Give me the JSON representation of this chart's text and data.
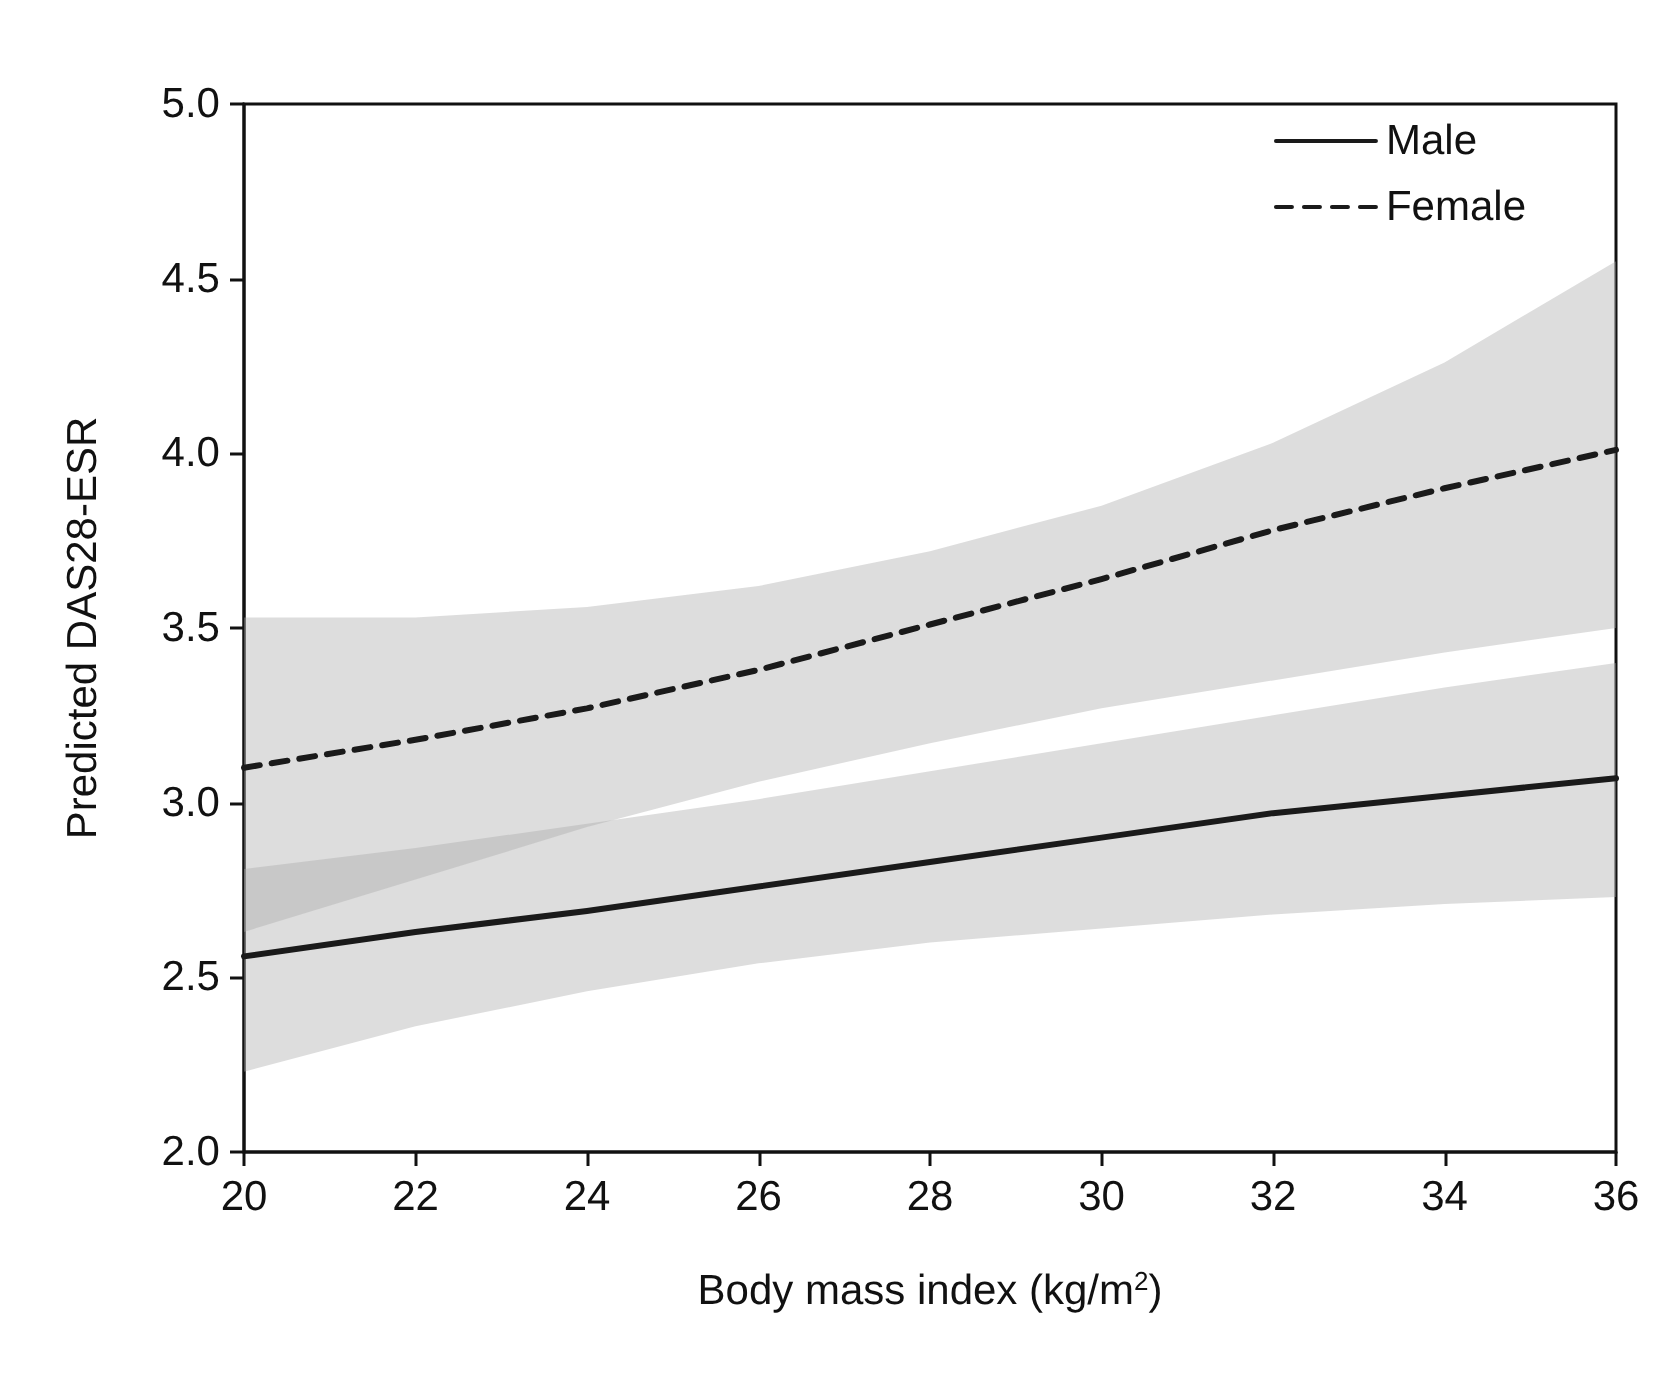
{
  "chart_data": {
    "type": "line",
    "xlabel": "Body mass index (kg/m$^{2}$)",
    "ylabel": "Predicted DAS28-ESR",
    "xlim": [
      20,
      36
    ],
    "xticks": [
      20,
      22,
      24,
      26,
      28,
      30,
      32,
      34,
      36
    ],
    "ylim": [
      2.0,
      5.0
    ],
    "yticks": [
      {
        "value": 2.0,
        "label": "2.0"
      },
      {
        "value": 2.5,
        "label": "2.5"
      },
      {
        "value": 3.0,
        "label": "3.0"
      },
      {
        "value": 3.5,
        "label": "3.5"
      },
      {
        "value": 4.0,
        "label": "4.0"
      },
      {
        "value": 4.5,
        "label": "4.5"
      },
      {
        "value": 5.0,
        "label": "5.0"
      }
    ],
    "x": [
      20,
      22,
      24,
      26,
      28,
      30,
      32,
      34,
      36
    ],
    "series": [
      {
        "name": "Male",
        "color": "#1a1a1a",
        "line_style": "solid",
        "values": [
          2.56,
          2.63,
          2.69,
          2.76,
          2.83,
          2.9,
          2.97,
          3.02,
          3.07
        ],
        "lower": [
          2.23,
          2.36,
          2.46,
          2.54,
          2.6,
          2.64,
          2.68,
          2.71,
          2.73
        ],
        "upper": [
          2.81,
          2.87,
          2.94,
          3.01,
          3.09,
          3.17,
          3.25,
          3.33,
          3.4
        ]
      },
      {
        "name": "Female",
        "color": "#1a1a1a",
        "line_style": "dashed",
        "values": [
          3.1,
          3.18,
          3.27,
          3.38,
          3.51,
          3.64,
          3.78,
          3.9,
          4.01
        ],
        "lower": [
          2.63,
          2.78,
          2.93,
          3.06,
          3.17,
          3.27,
          3.35,
          3.43,
          3.5
        ],
        "upper": [
          3.53,
          3.53,
          3.56,
          3.62,
          3.72,
          3.85,
          4.03,
          4.26,
          4.55
        ]
      }
    ],
    "grid": false,
    "legend": "top right",
    "marker": "none"
  }
}
